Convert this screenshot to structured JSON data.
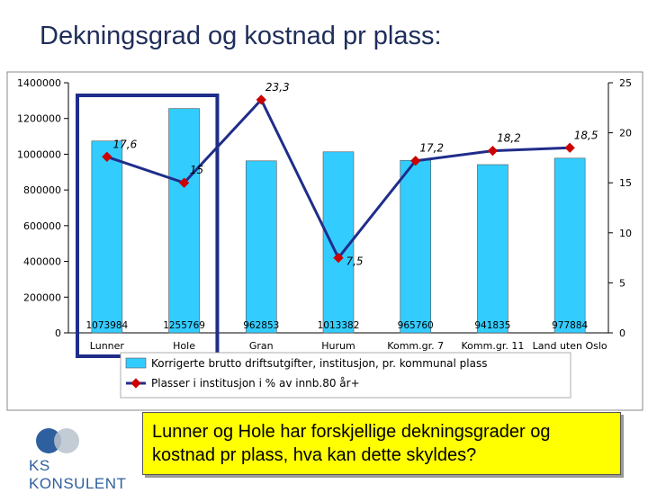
{
  "slide": {
    "title": "Dekningsgrad og kostnad pr plass:",
    "callout": "Lunner og Hole har forskjellige dekningsgrader og kostnad pr plass, hva kan dette skyldes?",
    "logo_text": "KS KONSULENT"
  },
  "chart_data": {
    "type": "bar",
    "categories": [
      "Lunner",
      "Hole",
      "Gran",
      "Hurum",
      "Komm.gr. 7",
      "Komm.gr. 11",
      "Land uten Oslo"
    ],
    "series": [
      {
        "name": "Korrigerte brutto driftsutgifter, institusjon, pr. kommunal plass",
        "type": "bar",
        "axis": "left",
        "values": [
          1073984,
          1255769,
          962853,
          1013382,
          965760,
          941835,
          977884
        ],
        "labels": [
          "1073984",
          "1255769",
          "962853",
          "1013382",
          "965760",
          "941835",
          "977884"
        ],
        "color": "#33ccff"
      },
      {
        "name": "Plasser i institusjon i % av innb.80 år+",
        "type": "line",
        "axis": "right",
        "values": [
          17.6,
          15,
          23.3,
          7.5,
          17.2,
          18.2,
          18.5
        ],
        "labels": [
          "17,6",
          "15",
          "23,3",
          "7,5",
          "17,2",
          "18,2",
          "18,5"
        ],
        "color": "#1f2d8a",
        "marker_color": "#cc0000"
      }
    ],
    "y_left": {
      "ylim": [
        0,
        1400000
      ],
      "ticks": [
        "0",
        "200000",
        "400000",
        "600000",
        "800000",
        "1000000",
        "1200000",
        "1400000"
      ]
    },
    "y_right": {
      "ylim": [
        0,
        25
      ],
      "ticks": [
        "0",
        "5",
        "10",
        "15",
        "20",
        "25"
      ]
    },
    "grid": false,
    "legend_position": "bottom",
    "highlight": {
      "categories": [
        "Lunner",
        "Hole"
      ],
      "color": "#1f2d8a"
    }
  }
}
